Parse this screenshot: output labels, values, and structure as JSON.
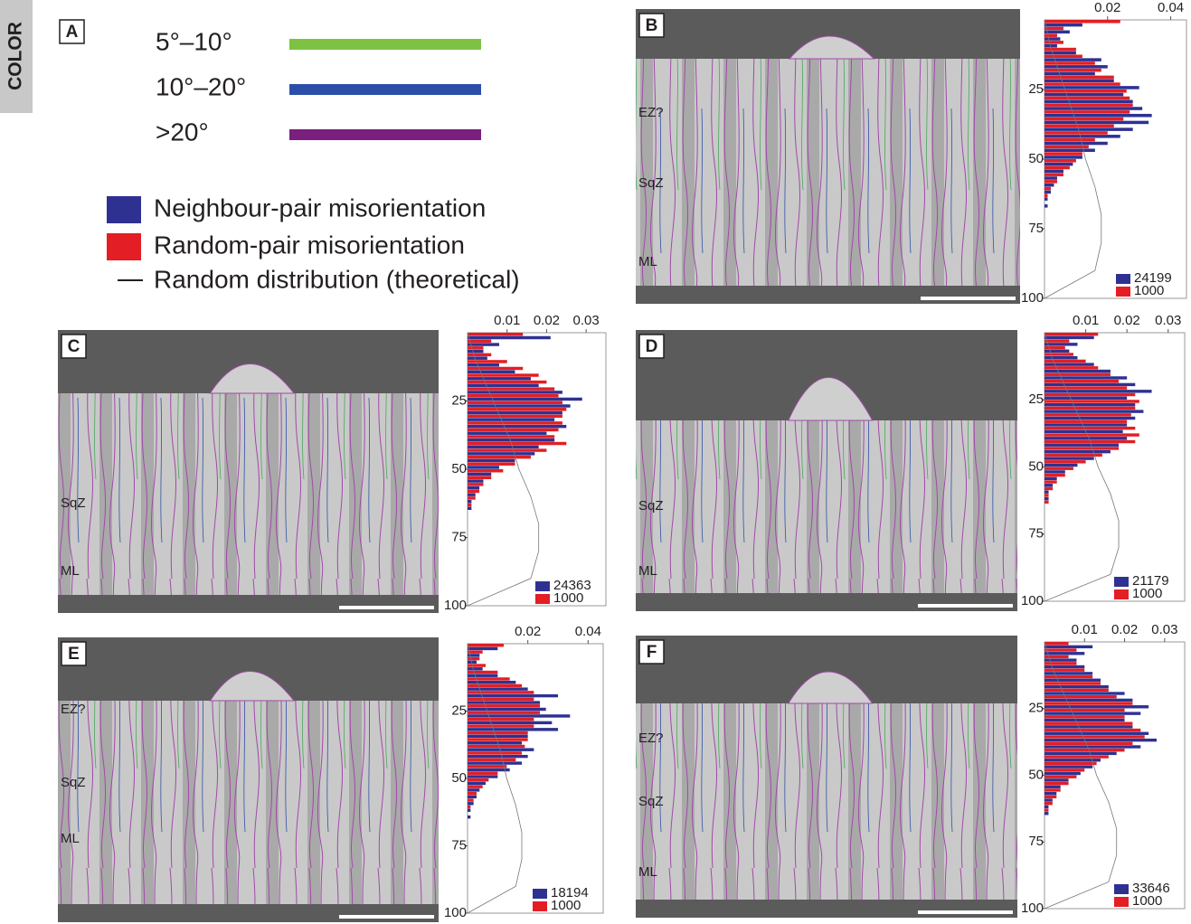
{
  "side_label": "COLOR",
  "legend": {
    "panel": "A",
    "angle_classes": [
      {
        "label": "5°–10°",
        "color": "#7dc242"
      },
      {
        "label": "10°–20°",
        "color": "#2b4fa8"
      },
      {
        "label": ">20°",
        "color": "#7a1f7e"
      }
    ],
    "series": [
      {
        "label": "Neighbour-pair misorientation",
        "color": "#2e3192"
      },
      {
        "label": "Random-pair misorientation",
        "color": "#e31e24"
      }
    ],
    "curve_label": "Random distribution (theoretical)"
  },
  "panels": [
    {
      "letter": "B",
      "zones": [
        "EZ?",
        "SqZ",
        "ML"
      ]
    },
    {
      "letter": "C",
      "zones": [
        "SqZ",
        "ML"
      ]
    },
    {
      "letter": "D",
      "zones": [
        "SqZ",
        "ML"
      ]
    },
    {
      "letter": "E",
      "zones": [
        "EZ?",
        "SqZ",
        "ML"
      ]
    },
    {
      "letter": "F",
      "zones": [
        "EZ?",
        "SqZ",
        "ML"
      ]
    }
  ],
  "random_curve": {
    "x": [
      0,
      10,
      20,
      30,
      40,
      50,
      60,
      70,
      80,
      90,
      95,
      100
    ],
    "values": [
      0,
      0.002,
      0.005,
      0.008,
      0.011,
      0.013,
      0.016,
      0.018,
      0.018,
      0.016,
      0.008,
      0
    ]
  },
  "chart_data": [
    {
      "type": "histogram",
      "bins": [
        0,
        2.5,
        5,
        7.5,
        10,
        12.5,
        15,
        17.5,
        20,
        22.5,
        25,
        27.5,
        30,
        32.5,
        35,
        37.5,
        40,
        42.5,
        45,
        47.5,
        50,
        52.5,
        55,
        57.5,
        60,
        62.5,
        65,
        67.5
      ],
      "ylim": [
        0,
        100
      ],
      "yticks": [
        25,
        50,
        75,
        100
      ],
      "xlim": [
        0,
        0.045
      ],
      "xticks": [
        0.02,
        0.04
      ],
      "series": [
        {
          "name": "24199",
          "color": "#2e3192",
          "values": [
            0.012,
            0.008,
            0.005,
            0.004,
            0.01,
            0.018,
            0.02,
            0.016,
            0.022,
            0.03,
            0.025,
            0.028,
            0.031,
            0.034,
            0.033,
            0.028,
            0.024,
            0.02,
            0.016,
            0.012,
            0.009,
            0.006,
            0.004,
            0.003,
            0.002,
            0.001,
            0.001
          ]
        },
        {
          "name": "1000",
          "color": "#e31e24",
          "values": [
            0.024,
            0.006,
            0.004,
            0.006,
            0.01,
            0.012,
            0.016,
            0.018,
            0.022,
            0.024,
            0.026,
            0.027,
            0.028,
            0.027,
            0.025,
            0.022,
            0.02,
            0.016,
            0.014,
            0.012,
            0.01,
            0.008,
            0.006,
            0.004,
            0.002,
            0.001,
            0
          ]
        }
      ]
    },
    {
      "type": "histogram",
      "bins": [
        0,
        2.5,
        5,
        7.5,
        10,
        12.5,
        15,
        17.5,
        20,
        22.5,
        25,
        27.5,
        30,
        32.5,
        35,
        37.5,
        40,
        42.5,
        45,
        47.5,
        50,
        52.5,
        55,
        57.5,
        60,
        62.5,
        65,
        67.5
      ],
      "ylim": [
        0,
        100
      ],
      "yticks": [
        25,
        50,
        75,
        100
      ],
      "xlim": [
        0,
        0.035
      ],
      "xticks": [
        0.01,
        0.02,
        0.03
      ],
      "series": [
        {
          "name": "24363",
          "color": "#2e3192",
          "values": [
            0.021,
            0.008,
            0.004,
            0.005,
            0.008,
            0.012,
            0.016,
            0.018,
            0.024,
            0.029,
            0.026,
            0.024,
            0.022,
            0.025,
            0.02,
            0.022,
            0.018,
            0.017,
            0.012,
            0.008,
            0.006,
            0.004,
            0.003,
            0.002,
            0.001,
            0.001,
            0
          ]
        },
        {
          "name": "1000",
          "color": "#e31e24",
          "values": [
            0.014,
            0.006,
            0.004,
            0.006,
            0.01,
            0.014,
            0.018,
            0.02,
            0.022,
            0.023,
            0.024,
            0.025,
            0.024,
            0.024,
            0.023,
            0.022,
            0.025,
            0.02,
            0.016,
            0.012,
            0.009,
            0.006,
            0.004,
            0.003,
            0.002,
            0.001,
            0
          ]
        }
      ]
    },
    {
      "type": "histogram",
      "bins": [
        0,
        2.5,
        5,
        7.5,
        10,
        12.5,
        15,
        17.5,
        20,
        22.5,
        25,
        27.5,
        30,
        32.5,
        35,
        37.5,
        40,
        42.5,
        45,
        47.5,
        50,
        52.5,
        55,
        57.5,
        60,
        62.5,
        65,
        67.5
      ],
      "ylim": [
        0,
        100
      ],
      "yticks": [
        25,
        50,
        75,
        100
      ],
      "xlim": [
        0,
        0.034
      ],
      "xticks": [
        0.01,
        0.02,
        0.03
      ],
      "series": [
        {
          "name": "21179",
          "color": "#2e3192",
          "values": [
            0.012,
            0.008,
            0.006,
            0.008,
            0.012,
            0.016,
            0.02,
            0.022,
            0.026,
            0.02,
            0.022,
            0.024,
            0.022,
            0.02,
            0.019,
            0.02,
            0.018,
            0.016,
            0.012,
            0.008,
            0.005,
            0.003,
            0.002,
            0.001,
            0.001,
            0,
            0
          ]
        },
        {
          "name": "1000",
          "color": "#e31e24",
          "values": [
            0.013,
            0.006,
            0.005,
            0.007,
            0.01,
            0.013,
            0.016,
            0.018,
            0.02,
            0.022,
            0.023,
            0.022,
            0.021,
            0.02,
            0.022,
            0.023,
            0.022,
            0.018,
            0.014,
            0.01,
            0.007,
            0.005,
            0.003,
            0.002,
            0.001,
            0.001,
            0
          ]
        }
      ]
    },
    {
      "type": "histogram",
      "bins": [
        0,
        2.5,
        5,
        7.5,
        10,
        12.5,
        15,
        17.5,
        20,
        22.5,
        25,
        27.5,
        30,
        32.5,
        35,
        37.5,
        40,
        42.5,
        45,
        47.5,
        50,
        52.5,
        55,
        57.5,
        60,
        62.5,
        65,
        67.5
      ],
      "ylim": [
        0,
        100
      ],
      "yticks": [
        25,
        50,
        75,
        100
      ],
      "xlim": [
        0,
        0.045
      ],
      "xticks": [
        0.02,
        0.04
      ],
      "series": [
        {
          "name": "18194",
          "color": "#2e3192",
          "values": [
            0.01,
            0.004,
            0.003,
            0.005,
            0.01,
            0.016,
            0.02,
            0.03,
            0.024,
            0.026,
            0.034,
            0.028,
            0.03,
            0.02,
            0.018,
            0.022,
            0.02,
            0.018,
            0.014,
            0.01,
            0.006,
            0.004,
            0.003,
            0.002,
            0.001,
            0.001,
            0
          ]
        },
        {
          "name": "1000",
          "color": "#e31e24",
          "values": [
            0.012,
            0.005,
            0.004,
            0.006,
            0.01,
            0.014,
            0.018,
            0.022,
            0.022,
            0.024,
            0.024,
            0.022,
            0.022,
            0.02,
            0.02,
            0.019,
            0.018,
            0.016,
            0.013,
            0.01,
            0.007,
            0.005,
            0.003,
            0.002,
            0.001,
            0,
            0
          ]
        }
      ]
    },
    {
      "type": "histogram",
      "bins": [
        0,
        2.5,
        5,
        7.5,
        10,
        12.5,
        15,
        17.5,
        20,
        22.5,
        25,
        27.5,
        30,
        32.5,
        35,
        37.5,
        40,
        42.5,
        45,
        47.5,
        50,
        52.5,
        55,
        57.5,
        60,
        62.5,
        65,
        67.5
      ],
      "ylim": [
        0,
        100
      ],
      "yticks": [
        25,
        50,
        75,
        100
      ],
      "xlim": [
        0,
        0.035
      ],
      "xticks": [
        0.01,
        0.02,
        0.03
      ],
      "series": [
        {
          "name": "33646",
          "color": "#2e3192",
          "values": [
            0.012,
            0.01,
            0.008,
            0.01,
            0.012,
            0.014,
            0.016,
            0.02,
            0.022,
            0.026,
            0.024,
            0.02,
            0.022,
            0.026,
            0.028,
            0.024,
            0.018,
            0.014,
            0.012,
            0.009,
            0.006,
            0.004,
            0.003,
            0.002,
            0.001,
            0.001,
            0
          ]
        },
        {
          "name": "1000",
          "color": "#e31e24",
          "values": [
            0.006,
            0.008,
            0.006,
            0.008,
            0.01,
            0.012,
            0.014,
            0.016,
            0.018,
            0.022,
            0.02,
            0.02,
            0.022,
            0.024,
            0.025,
            0.022,
            0.02,
            0.016,
            0.013,
            0.01,
            0.008,
            0.006,
            0.004,
            0.003,
            0.002,
            0.001,
            0
          ]
        }
      ]
    }
  ]
}
